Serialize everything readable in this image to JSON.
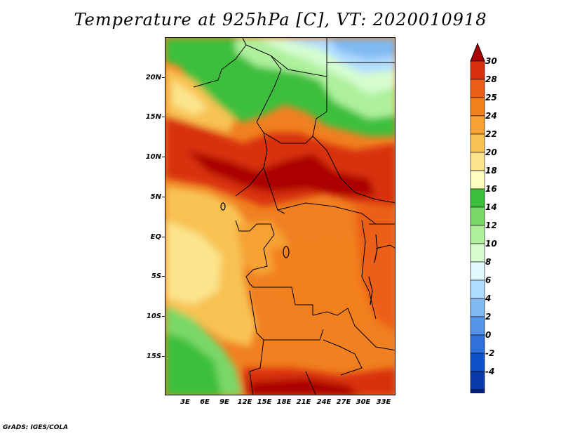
{
  "title": "Temperature at 925hPa [C], VT: 2020010918",
  "credit": "GrADS: IGES/COLA",
  "map": {
    "y_labels": [
      "20N",
      "15N",
      "10N",
      "5N",
      "EQ",
      "5S",
      "10S",
      "15S"
    ],
    "x_labels": [
      "3E",
      "6E",
      "9E",
      "12E",
      "15E",
      "18E",
      "21E",
      "24E",
      "27E",
      "30E",
      "33E"
    ]
  },
  "colorbar": {
    "labels": [
      "30",
      "28",
      "25",
      "24",
      "22",
      "20",
      "18",
      "16",
      "14",
      "12",
      "10",
      "8",
      "6",
      "4",
      "2",
      "0",
      "-2",
      "-4"
    ],
    "colors": [
      "#aa0000",
      "#d83010",
      "#ec5e18",
      "#f2801e",
      "#f6a236",
      "#f8c252",
      "#fbe48c",
      "#fffcc0",
      "#3cbf3c",
      "#7ad868",
      "#aef09c",
      "#d6fcd0",
      "#e4f8ff",
      "#b0dcff",
      "#80baf0",
      "#5596e6",
      "#3070dc",
      "#1050c8",
      "#0a3aaa",
      "#052080",
      "#eeeeff"
    ]
  }
}
